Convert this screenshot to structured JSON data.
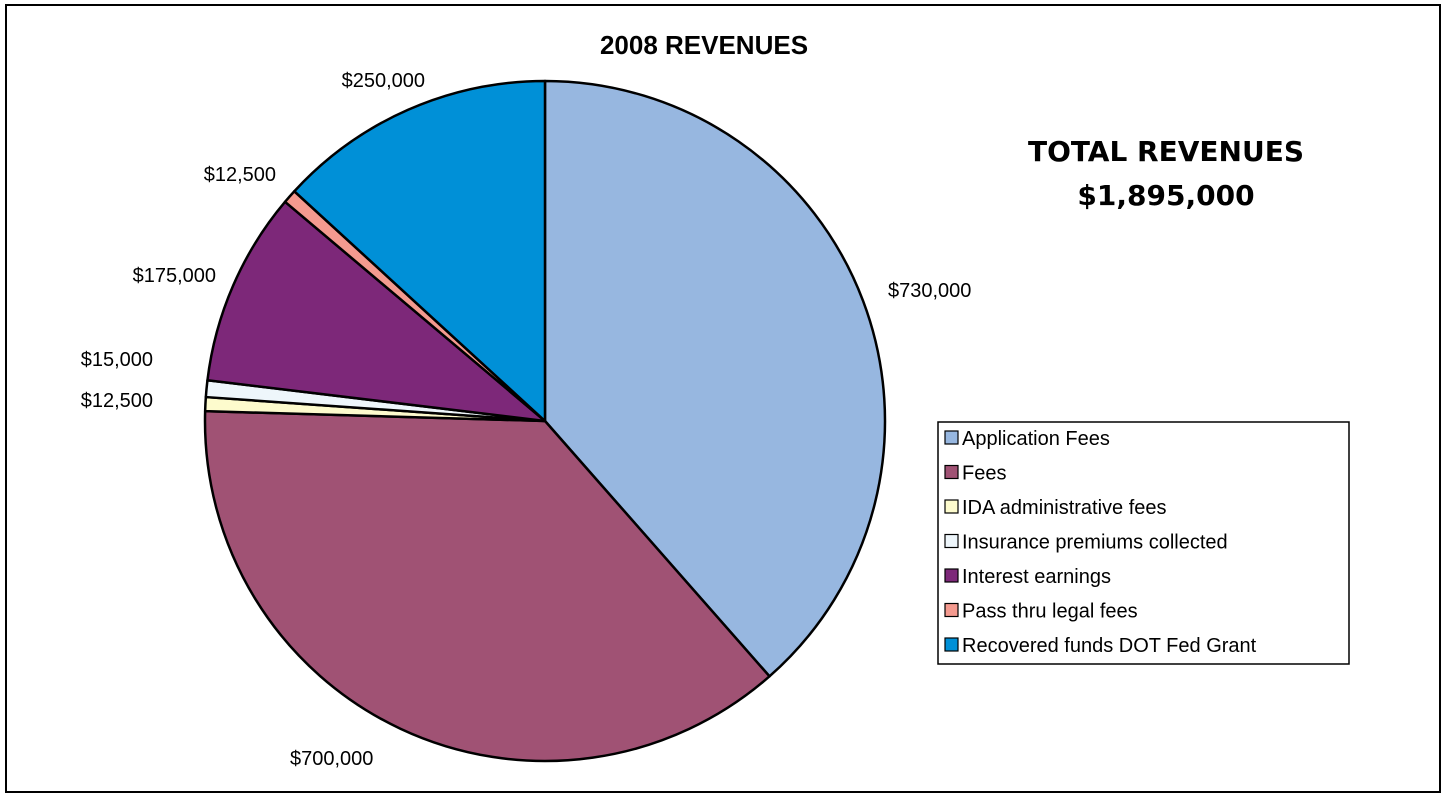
{
  "chart_data": {
    "type": "pie",
    "title": "2008 REVENUES",
    "total_label": "TOTAL REVENUES",
    "total_value": "$1,895,000",
    "legend_position": "right",
    "slices": [
      {
        "name": "Application Fees",
        "value": 730000,
        "label": "$730,000",
        "color": "#97b7e0"
      },
      {
        "name": "Fees",
        "value": 700000,
        "label": "$700,000",
        "color": "#a05274"
      },
      {
        "name": "IDA administrative fees",
        "value": 12500,
        "label": "$12,500",
        "color": "#fdfbcd"
      },
      {
        "name": "Insurance premiums collected",
        "value": 15000,
        "label": "$15,000",
        "color": "#eef6fb"
      },
      {
        "name": "Interest earnings",
        "value": 175000,
        "label": "$175,000",
        "color": "#7d2879"
      },
      {
        "name": "Pass thru legal fees",
        "value": 12500,
        "label": "$12,500",
        "color": "#f49a8f"
      },
      {
        "name": "Recovered funds DOT Fed Grant",
        "value": 250000,
        "label": "$250,000",
        "color": "#0090d7"
      }
    ]
  }
}
